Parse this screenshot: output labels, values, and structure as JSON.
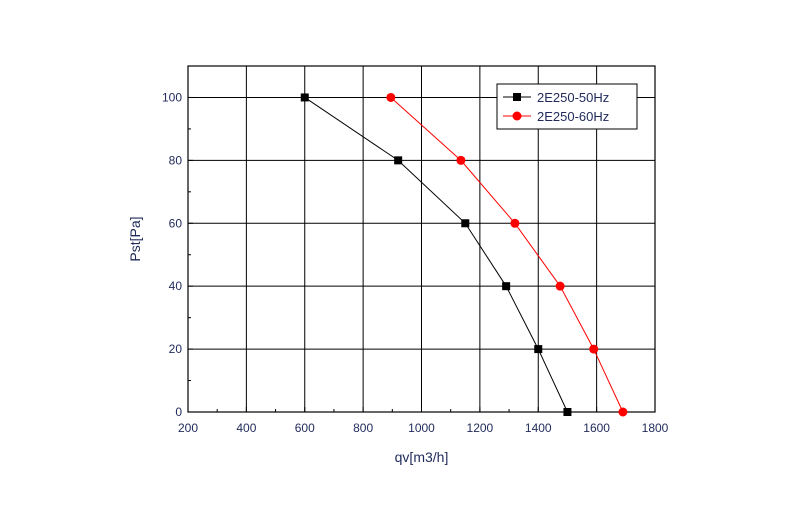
{
  "chart_data": {
    "type": "line",
    "title": "",
    "xlabel": "qv[m3/h]",
    "ylabel": "Pst[Pa]",
    "xlim": [
      200,
      1800
    ],
    "ylim": [
      0,
      110
    ],
    "x_ticks": [
      200,
      400,
      600,
      800,
      1000,
      1200,
      1400,
      1600,
      1800
    ],
    "y_ticks": [
      0,
      20,
      40,
      60,
      80,
      100
    ],
    "x_tick_labels": [
      "200",
      "400",
      "600",
      "800",
      "1000",
      "1200",
      "1400",
      "1600",
      "1800"
    ],
    "y_tick_labels": [
      "0",
      "20",
      "40",
      "60",
      "80",
      "100"
    ],
    "grid": true,
    "legend_position": "top-right",
    "series": [
      {
        "name": "2E250-50Hz",
        "color": "#000000",
        "marker": "square",
        "x": [
          600,
          920,
          1150,
          1290,
          1400,
          1500
        ],
        "y": [
          100,
          80,
          60,
          40,
          20,
          0
        ]
      },
      {
        "name": "2E250-60Hz",
        "color": "#ff0000",
        "marker": "circle",
        "x": [
          895,
          1135,
          1320,
          1475,
          1590,
          1690
        ],
        "y": [
          100,
          80,
          60,
          40,
          20,
          0
        ]
      }
    ]
  }
}
